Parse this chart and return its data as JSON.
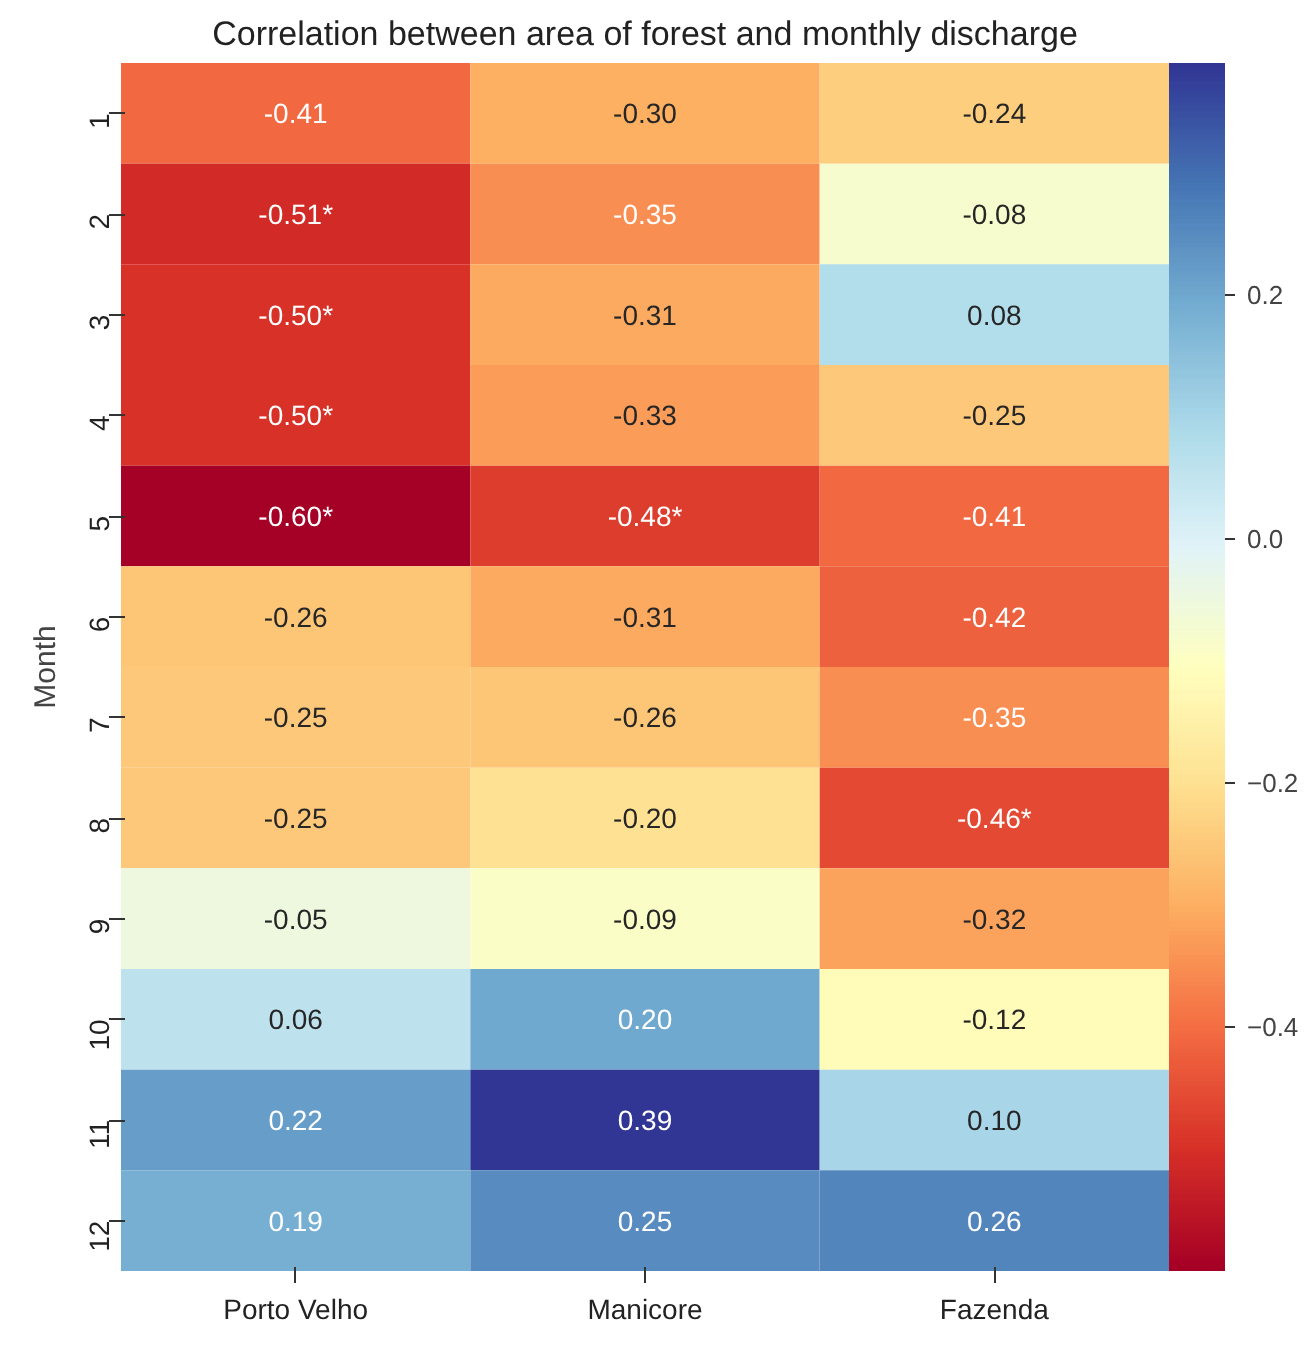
{
  "chart_data": {
    "type": "heatmap",
    "title": "Correlation between area of forest and monthly discharge",
    "ylabel": "Month",
    "categories": [
      "Porto Velho",
      "Manicore",
      "Fazenda"
    ],
    "y_categories": [
      "1",
      "2",
      "3",
      "4",
      "5",
      "6",
      "7",
      "8",
      "9",
      "10",
      "11",
      "12"
    ],
    "cells": [
      [
        -0.41,
        -0.3,
        -0.24
      ],
      [
        -0.51,
        -0.35,
        -0.08
      ],
      [
        -0.5,
        -0.31,
        0.08
      ],
      [
        -0.5,
        -0.33,
        -0.25
      ],
      [
        -0.6,
        -0.48,
        -0.41
      ],
      [
        -0.26,
        -0.31,
        -0.42
      ],
      [
        -0.25,
        -0.26,
        -0.35
      ],
      [
        -0.25,
        -0.2,
        -0.46
      ],
      [
        -0.05,
        -0.09,
        -0.32
      ],
      [
        0.06,
        0.2,
        -0.12
      ],
      [
        0.22,
        0.39,
        0.1
      ],
      [
        0.19,
        0.25,
        0.26
      ]
    ],
    "cell_labels": [
      [
        "-0.41",
        "-0.30",
        "-0.24"
      ],
      [
        "-0.51*",
        "-0.35",
        "-0.08"
      ],
      [
        "-0.50*",
        "-0.31",
        "0.08"
      ],
      [
        "-0.50*",
        "-0.33",
        "-0.25"
      ],
      [
        "-0.60*",
        "-0.48*",
        "-0.41"
      ],
      [
        "-0.26",
        "-0.31",
        "-0.42"
      ],
      [
        "-0.25",
        "-0.26",
        "-0.35"
      ],
      [
        "-0.25",
        "-0.20",
        "-0.46*"
      ],
      [
        "-0.05",
        "-0.09",
        "-0.32"
      ],
      [
        "0.06",
        "0.20",
        "-0.12"
      ],
      [
        "0.22",
        "0.39",
        "0.10"
      ],
      [
        "0.19",
        "0.25",
        "0.26"
      ]
    ],
    "clim": [
      -0.6,
      0.39
    ],
    "cticks": [
      {
        "value": -0.4,
        "label": "−0.4"
      },
      {
        "value": -0.2,
        "label": "−0.2"
      },
      {
        "value": 0.0,
        "label": "0.0"
      },
      {
        "value": 0.2,
        "label": "0.2"
      }
    ]
  }
}
